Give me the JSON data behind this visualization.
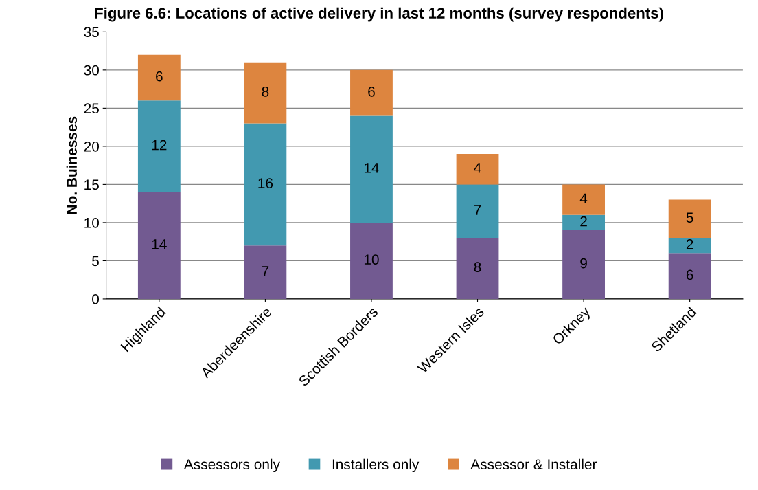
{
  "chart_data": {
    "type": "bar",
    "title": "Figure 6.6: Locations of active delivery in last 12 months (survey respondents)",
    "ylabel": "No. Buinesses",
    "categories": [
      "Highland",
      "Aberdeenshire",
      "Scottish Borders",
      "Western Isles",
      "Orkney",
      "Shetland"
    ],
    "series": [
      {
        "name": "Assessors only",
        "color": "#725a91",
        "values": [
          14,
          7,
          10,
          8,
          9,
          6
        ]
      },
      {
        "name": "Installers only",
        "color": "#4299b0",
        "values": [
          12,
          16,
          14,
          7,
          2,
          2
        ]
      },
      {
        "name": "Assessor & Installer",
        "color": "#dd853f",
        "values": [
          6,
          8,
          6,
          4,
          4,
          5
        ]
      }
    ],
    "stacked": true,
    "ylim": [
      0,
      35
    ],
    "yticks": [
      0,
      5,
      10,
      15,
      20,
      25,
      30,
      35
    ],
    "grid": "y",
    "legend": "bottom",
    "data_labels": true
  }
}
